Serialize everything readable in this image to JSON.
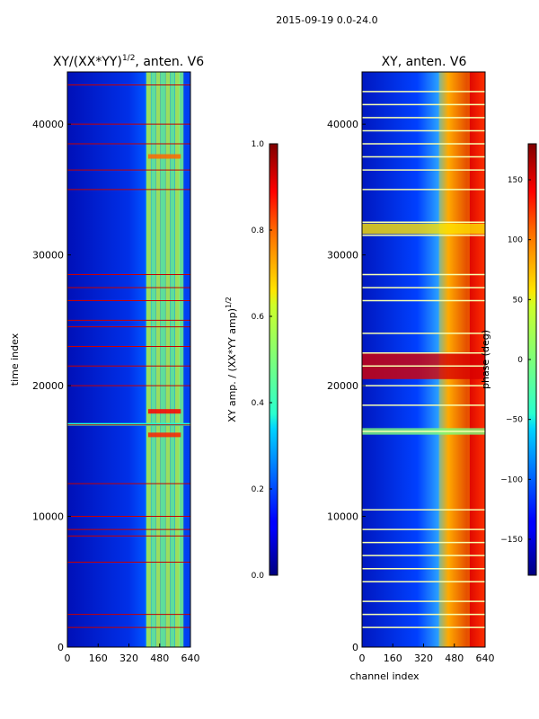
{
  "suptitle": "2015-09-19 0.0-24.0",
  "chart_data": [
    {
      "type": "heatmap",
      "title_main": "XY/(XX*YY)",
      "title_sup": "1/2",
      "title_tail": ", anten. V6",
      "ylabel": "time index",
      "xlabel": "",
      "x_ticks": [
        0,
        160,
        320,
        480,
        640
      ],
      "y_ticks": [
        0,
        10000,
        20000,
        30000,
        40000
      ],
      "xlim": [
        0,
        640
      ],
      "ylim": [
        0,
        44000
      ],
      "colorbar": {
        "label_main": "XY amp. / (XX*YY amp)",
        "label_sup": "1/2",
        "range": [
          0.0,
          1.0
        ],
        "ticks": [
          "0.0",
          "0.2",
          "0.4",
          "0.6",
          "0.8",
          "1.0"
        ],
        "tick_values": [
          0,
          0.2,
          0.4,
          0.6,
          0.8,
          1.0
        ],
        "colormap": "jet"
      },
      "bright_channel_columns": [
        420,
        445,
        470,
        495,
        520,
        545,
        570,
        590
      ],
      "horizontal_lines": [
        43000,
        40000,
        38500,
        36500,
        35000,
        28500,
        27500,
        26500,
        25000,
        24500,
        23000,
        21500,
        20000,
        17000,
        12500,
        10000,
        9000,
        8500,
        6500,
        2500,
        1500
      ]
    },
    {
      "type": "heatmap",
      "title": "XY, anten. V6",
      "xlabel": "channel index",
      "ylabel": "",
      "x_ticks": [
        0,
        160,
        320,
        480,
        640
      ],
      "y_ticks": [
        0,
        10000,
        20000,
        30000,
        40000
      ],
      "xlim": [
        0,
        640
      ],
      "ylim": [
        0,
        44000
      ],
      "colorbar": {
        "label": "phase (deg)",
        "range": [
          -180,
          180
        ],
        "ticks": [
          "150",
          "100",
          "50",
          "0",
          "−50",
          "−100",
          "−150"
        ],
        "tick_values": [
          150,
          100,
          50,
          0,
          -50,
          -100,
          -150
        ],
        "colormap": "jet"
      },
      "horizontal_lines": [
        42500,
        41500,
        40500,
        39500,
        38500,
        37500,
        36500,
        35000,
        32500,
        31500,
        28500,
        27500,
        26500,
        24000,
        22500,
        21500,
        20000,
        18500,
        16500,
        10500,
        9000,
        8000,
        7000,
        6000,
        5000,
        3500,
        2500,
        1500
      ]
    }
  ]
}
